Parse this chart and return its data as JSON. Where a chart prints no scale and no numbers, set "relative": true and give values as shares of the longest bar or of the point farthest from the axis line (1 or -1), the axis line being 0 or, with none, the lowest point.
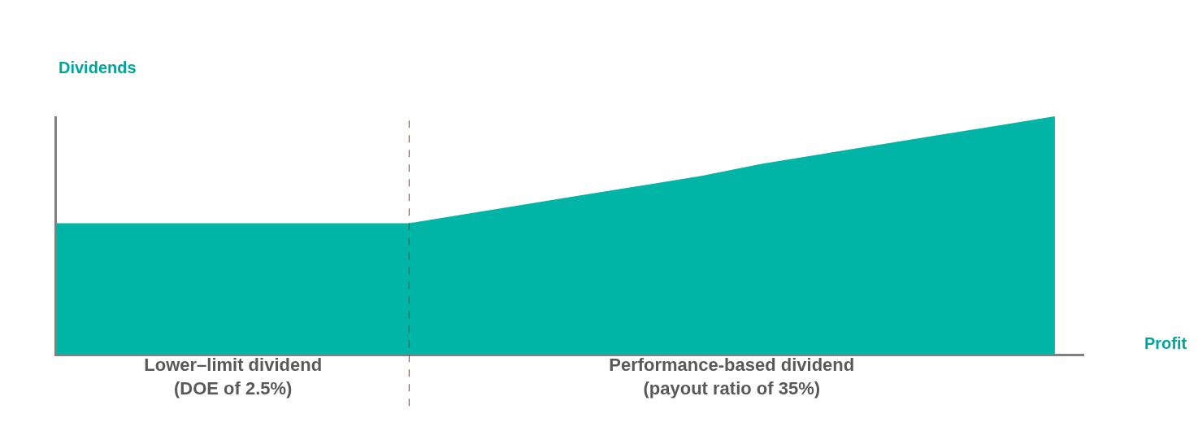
{
  "chart_data": {
    "type": "area",
    "relative": true,
    "xlabel": "Profit",
    "ylabel": "Dividends",
    "categories": [
      null,
      null,
      null,
      null,
      null,
      null,
      null,
      null,
      null,
      null,
      null,
      null,
      null,
      null,
      null,
      null,
      null,
      null
    ],
    "series": [
      {
        "color": "#00b4a6",
        "values": [
          0.55,
          0.55,
          0.55,
          0.55,
          0.55,
          0.55,
          0.55,
          0.59,
          0.63,
          0.67,
          0.71,
          0.75,
          0.8,
          0.84,
          0.88,
          0.92,
          0.96,
          1.0
        ]
      }
    ],
    "annotations": [
      "Lower–limit dividend\n(DOE of 2.5%)",
      "Performance-based dividend\n(payout ratio of 35%)"
    ]
  }
}
